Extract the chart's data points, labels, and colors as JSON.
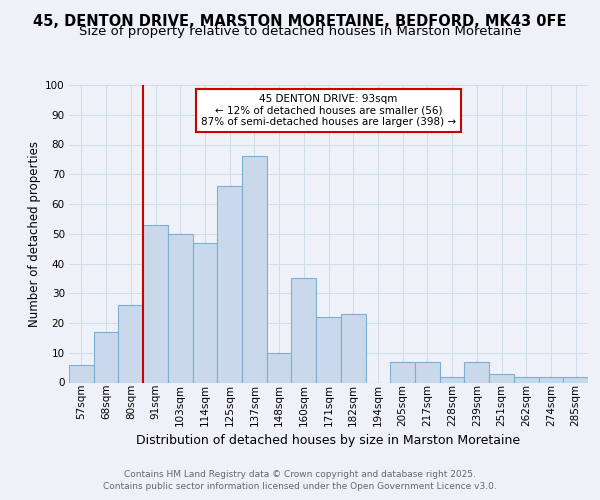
{
  "title": "45, DENTON DRIVE, MARSTON MORETAINE, BEDFORD, MK43 0FE",
  "subtitle": "Size of property relative to detached houses in Marston Moretaine",
  "xlabel": "Distribution of detached houses by size in Marston Moretaine",
  "ylabel": "Number of detached properties",
  "bar_labels": [
    "57sqm",
    "68sqm",
    "80sqm",
    "91sqm",
    "103sqm",
    "114sqm",
    "125sqm",
    "137sqm",
    "148sqm",
    "160sqm",
    "171sqm",
    "182sqm",
    "194sqm",
    "205sqm",
    "217sqm",
    "228sqm",
    "239sqm",
    "251sqm",
    "262sqm",
    "274sqm",
    "285sqm"
  ],
  "bar_values": [
    6,
    17,
    26,
    53,
    50,
    47,
    66,
    76,
    10,
    35,
    22,
    23,
    0,
    7,
    7,
    2,
    7,
    3,
    2,
    2,
    2
  ],
  "bar_color": "#c9d9eb",
  "bar_edge_color": "#7bafd4",
  "grid_color": "#d0dce8",
  "background_color": "#eef2f8",
  "red_line_index": 3,
  "annotation_text": "45 DENTON DRIVE: 93sqm\n← 12% of detached houses are smaller (56)\n87% of semi-detached houses are larger (398) →",
  "annotation_box_facecolor": "#ffffff",
  "annotation_box_edgecolor": "#cc0000",
  "red_line_color": "#cc0000",
  "ylim": [
    0,
    100
  ],
  "yticks": [
    0,
    10,
    20,
    30,
    40,
    50,
    60,
    70,
    80,
    90,
    100
  ],
  "footer_line1": "Contains HM Land Registry data © Crown copyright and database right 2025.",
  "footer_line2": "Contains public sector information licensed under the Open Government Licence v3.0.",
  "title_fontsize": 10.5,
  "subtitle_fontsize": 9.5,
  "xlabel_fontsize": 9,
  "ylabel_fontsize": 8.5,
  "tick_fontsize": 7.5,
  "annotation_fontsize": 7.5,
  "footer_fontsize": 6.5
}
